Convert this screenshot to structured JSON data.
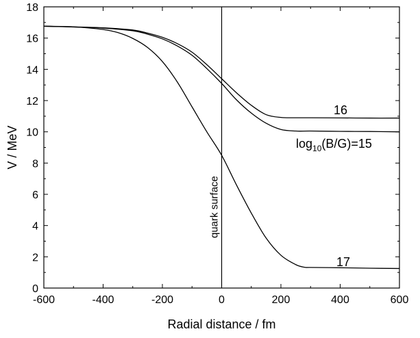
{
  "chart_data": {
    "type": "line",
    "xlabel": "Radial distance / fm",
    "ylabel": "V / MeV",
    "xlim": [
      -600,
      600
    ],
    "ylim": [
      0,
      18
    ],
    "xticks": [
      -600,
      -400,
      -200,
      0,
      200,
      400,
      600
    ],
    "yticks": [
      0,
      2,
      4,
      6,
      8,
      10,
      12,
      14,
      16,
      18
    ],
    "grid": false,
    "legend": "none",
    "annotation": {
      "text": "quark surface",
      "x": 0
    },
    "series": [
      {
        "label_parts": [
          "log",
          "10",
          "(B/G)=15"
        ],
        "points": [
          [
            -600,
            16.76
          ],
          [
            -500,
            16.71
          ],
          [
            -400,
            16.64
          ],
          [
            -300,
            16.47
          ],
          [
            -250,
            16.25
          ],
          [
            -200,
            15.95
          ],
          [
            -150,
            15.5
          ],
          [
            -100,
            14.9
          ],
          [
            -50,
            14.05
          ],
          [
            0,
            13.1
          ],
          [
            50,
            12.05
          ],
          [
            100,
            11.2
          ],
          [
            150,
            10.55
          ],
          [
            200,
            10.15
          ],
          [
            250,
            10.05
          ],
          [
            300,
            10.05
          ],
          [
            400,
            10.03
          ],
          [
            500,
            10.02
          ],
          [
            600,
            10.0
          ]
        ]
      },
      {
        "label_parts": [
          "16"
        ],
        "points": [
          [
            -600,
            16.76
          ],
          [
            -500,
            16.72
          ],
          [
            -400,
            16.66
          ],
          [
            -300,
            16.52
          ],
          [
            -250,
            16.32
          ],
          [
            -200,
            16.05
          ],
          [
            -150,
            15.65
          ],
          [
            -100,
            15.1
          ],
          [
            -50,
            14.3
          ],
          [
            0,
            13.4
          ],
          [
            50,
            12.5
          ],
          [
            100,
            11.7
          ],
          [
            150,
            11.1
          ],
          [
            200,
            10.92
          ],
          [
            250,
            10.9
          ],
          [
            300,
            10.9
          ],
          [
            400,
            10.89
          ],
          [
            500,
            10.88
          ],
          [
            600,
            10.88
          ]
        ]
      },
      {
        "label_parts": [
          "17"
        ],
        "points": [
          [
            -600,
            16.76
          ],
          [
            -500,
            16.72
          ],
          [
            -400,
            16.55
          ],
          [
            -350,
            16.35
          ],
          [
            -300,
            15.98
          ],
          [
            -250,
            15.4
          ],
          [
            -200,
            14.5
          ],
          [
            -150,
            13.2
          ],
          [
            -100,
            11.6
          ],
          [
            -50,
            10.0
          ],
          [
            0,
            8.5
          ],
          [
            50,
            6.6
          ],
          [
            100,
            4.8
          ],
          [
            150,
            3.2
          ],
          [
            200,
            2.1
          ],
          [
            250,
            1.5
          ],
          [
            280,
            1.33
          ],
          [
            300,
            1.32
          ],
          [
            400,
            1.3
          ],
          [
            500,
            1.27
          ],
          [
            600,
            1.25
          ]
        ]
      }
    ]
  }
}
